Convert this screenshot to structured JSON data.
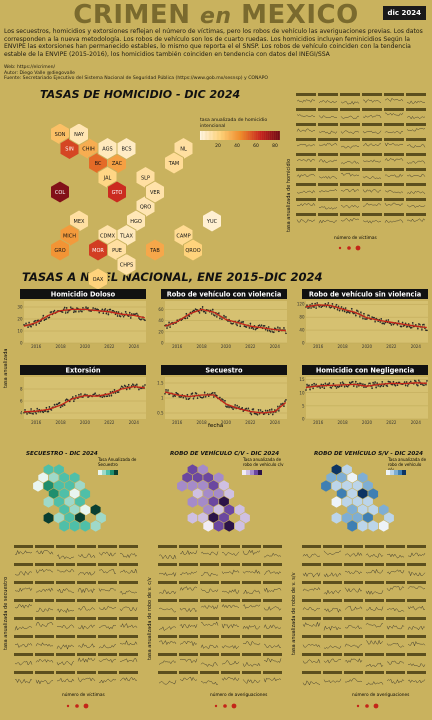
{
  "header": {
    "title_part1": "CRIMEN",
    "title_part2": "en",
    "title_part3": "MEXICO",
    "badge": "dic 2024"
  },
  "intro": {
    "text": "Los secuestros, homicidios y extorsiones reflejan el número de víctimas, pero los robos de vehículo las averiguaciones previas. Los datos corresponden a la nueva metodología. Los robos de vehículo son los de cuarto ruedas. Los homicidios incluyen feminicidios Según la ENVIPE las extorsiones han permanecido estables, lo mismo que reporta el el SNSP. Los robos de vehículo coinciden con la tendencia estable de la ENVIPE (2015-2016), los homicidios también coinciden en tendencia con datos del INEGI/SSA",
    "web": "Web: https://elcrimen/",
    "author": "Autor: Diego Valle @diegovalle",
    "source": "Fuente: Secretariado Ejecutivo del Sistema Nacional de Seguridad Pública (https://www.gob.mx/sesnsp) y CONAPO"
  },
  "homicide_map": {
    "title": "TASAS DE HOMICIDIO - DIC 2024",
    "legend_title": "tasa anualizada de homicidio intencional",
    "legend_ticks": [
      "20",
      "40",
      "60",
      "80"
    ],
    "colors": [
      "#fff5e0",
      "#ffd27a",
      "#f08a2a",
      "#c8241f",
      "#6e0a16"
    ],
    "states": [
      {
        "name": "SON",
        "v": 28
      },
      {
        "name": "CHIH",
        "v": 34
      },
      {
        "name": "BC",
        "v": 52
      },
      {
        "name": "DGO",
        "v": 12
      },
      {
        "name": "COAH",
        "v": 6
      },
      {
        "name": "SIN",
        "v": 60
      },
      {
        "name": "ZAC",
        "v": 38
      },
      {
        "name": "NL",
        "v": 14
      },
      {
        "name": "BCS",
        "v": 6
      },
      {
        "name": "NAY",
        "v": 10
      },
      {
        "name": "AGS",
        "v": 8
      },
      {
        "name": "TAM",
        "v": 16
      },
      {
        "name": "JAL",
        "v": 20
      },
      {
        "name": "SLP",
        "v": 14
      },
      {
        "name": "COL",
        "v": 85
      },
      {
        "name": "GTO",
        "v": 66
      },
      {
        "name": "QRO",
        "v": 10
      },
      {
        "name": "VER",
        "v": 12
      },
      {
        "name": "MEX",
        "v": 14
      },
      {
        "name": "HGO",
        "v": 9
      },
      {
        "name": "MICH",
        "v": 40
      },
      {
        "name": "CDMX",
        "v": 12
      },
      {
        "name": "TLAX",
        "v": 8
      },
      {
        "name": "YUC",
        "v": 3
      },
      {
        "name": "GRO",
        "v": 42
      },
      {
        "name": "MOR",
        "v": 62
      },
      {
        "name": "PUE",
        "v": 14
      },
      {
        "name": "TAB",
        "v": 36
      },
      {
        "name": "CAMP",
        "v": 17
      },
      {
        "name": "QROO",
        "v": 22
      },
      {
        "name": "CHPS",
        "v": 12
      },
      {
        "name": "OAX",
        "v": 22
      }
    ]
  },
  "national": {
    "title": "TASAS A NIVEL NACIONAL, ENE 2015–DIC 2024",
    "ylabel": "tasa anualizada",
    "xlabel": "fecha",
    "x_ticks": [
      "2016",
      "2018",
      "2020",
      "2022",
      "2024"
    ]
  },
  "small_maps": [
    {
      "title": "SECUESTRO - DIC 2024",
      "legend": "Tasa Anualizada de Secuestro"
    },
    {
      "title": "ROBO DE VEHÍCULO C/V - DIC 2024",
      "legend": "Tasa anualizada de robo de vehículo c/v"
    },
    {
      "title": "ROBO DE VEHÍCULO S/V - DIC 2024",
      "legend": "Tasa anualizada de robo de vehículo s/v"
    }
  ],
  "facet_labels": {
    "homicidio": "tasa anualizada de homicidio",
    "secuestro": "tasa anualizada de secuestro",
    "robo_cv": "tasa anualizada de robo de v. c/v",
    "robo_sv": "tasa anualizada de robo de v. s/v",
    "victimas": "número de víctimas",
    "averiguaciones": "número de averiguaciones"
  },
  "chart_data": [
    {
      "type": "line",
      "title": "Homicidio Doloso",
      "x_range": [
        2015,
        2025
      ],
      "ylim": [
        0,
        35
      ],
      "y_ticks": [
        0,
        10,
        20,
        30
      ],
      "series": [
        {
          "x": [
            2015,
            2016,
            2017,
            2018,
            2019,
            2020,
            2021,
            2022,
            2023,
            2024,
            2024.9
          ],
          "values": [
            14,
            17,
            23,
            27,
            28,
            28,
            27,
            26,
            24,
            23,
            21
          ]
        }
      ]
    },
    {
      "type": "line",
      "title": "Robo de vehículo con violencia",
      "x_range": [
        2015,
        2025
      ],
      "ylim": [
        0,
        75
      ],
      "y_ticks": [
        0,
        20,
        40,
        60
      ],
      "series": [
        {
          "x": [
            2015,
            2016,
            2017,
            2018,
            2019,
            2020,
            2021,
            2022,
            2023,
            2024,
            2024.9
          ],
          "values": [
            30,
            38,
            52,
            60,
            55,
            42,
            36,
            30,
            27,
            24,
            22
          ]
        }
      ]
    },
    {
      "type": "line",
      "title": "Robo de vehículo sin violencia",
      "x_range": [
        2015,
        2025
      ],
      "ylim": [
        0,
        130
      ],
      "y_ticks": [
        0,
        40,
        80,
        120
      ],
      "series": [
        {
          "x": [
            2015,
            2016,
            2017,
            2018,
            2019,
            2020,
            2021,
            2022,
            2023,
            2024,
            2024.9
          ],
          "values": [
            112,
            118,
            116,
            105,
            95,
            78,
            70,
            64,
            58,
            52,
            48
          ]
        }
      ]
    },
    {
      "type": "line",
      "title": "Extorsión",
      "x_range": [
        2015,
        2025
      ],
      "ylim": [
        3,
        10
      ],
      "y_ticks": [
        4,
        6,
        8
      ],
      "series": [
        {
          "x": [
            2015,
            2016,
            2017,
            2018,
            2019,
            2020,
            2021,
            2022,
            2023,
            2024,
            2024.9
          ],
          "values": [
            4.2,
            4.3,
            4.6,
            5.3,
            6.4,
            6.9,
            6.8,
            7.2,
            8.0,
            8.4,
            8.2
          ]
        }
      ]
    },
    {
      "type": "line",
      "title": "Secuestro",
      "x_range": [
        2015,
        2025
      ],
      "ylim": [
        0.3,
        1.7
      ],
      "y_ticks": [
        0.5,
        1.0,
        1.5
      ],
      "series": [
        {
          "x": [
            2015,
            2016,
            2017,
            2018,
            2019,
            2020,
            2021,
            2022,
            2023,
            2024,
            2024.9
          ],
          "values": [
            1.2,
            1.1,
            1.05,
            1.1,
            1.1,
            0.8,
            0.65,
            0.55,
            0.5,
            0.55,
            0.85
          ]
        }
      ]
    },
    {
      "type": "line",
      "title": "Homicidio con Negligencia",
      "x_range": [
        2015,
        2025
      ],
      "ylim": [
        0,
        16
      ],
      "y_ticks": [
        0,
        5,
        10,
        15
      ],
      "series": [
        {
          "x": [
            2015,
            2016,
            2017,
            2018,
            2019,
            2020,
            2021,
            2022,
            2023,
            2024,
            2024.9
          ],
          "values": [
            12,
            12.6,
            12.8,
            13,
            13.2,
            12.5,
            13.2,
            13.6,
            13.5,
            13.8,
            13.6
          ]
        }
      ]
    }
  ]
}
